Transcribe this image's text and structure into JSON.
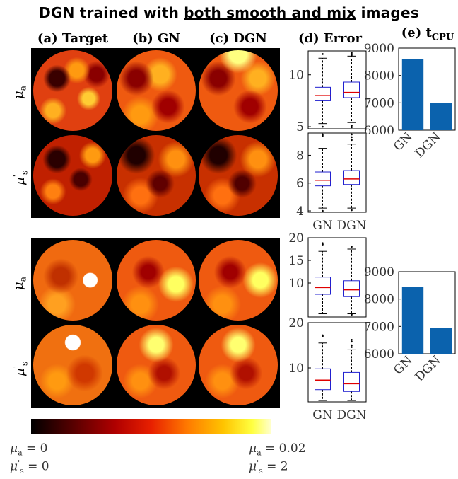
{
  "title": {
    "pre": "DGN trained with ",
    "underlined": "both smooth and mix",
    "post": " images"
  },
  "columns": {
    "target": "(a) Target",
    "gn": "(b) GN",
    "dgn": "(c) DGN",
    "error": "(d) Error",
    "tcpu": "(e) t",
    "tcpu_sub": "CPU"
  },
  "row_labels": {
    "mua_sym": "μ",
    "mua_sub": "a",
    "mus_sym": "μ",
    "mus_sup": "'",
    "mus_sub": "s"
  },
  "colorbar": {
    "min_mua": "μ",
    "min_mua_sub": "a",
    "min_mua_val": " = 0",
    "min_mus": "μ",
    "min_mus_sup": "'",
    "min_mus_sub": "s",
    "min_mus_val": " = 0",
    "max_mua": "μ",
    "max_mua_sub": "a",
    "max_mua_val": " = 0.02",
    "max_mus": "μ",
    "max_mus_sup": "'",
    "max_mus_sub": "s",
    "max_mus_val": " = 2",
    "colors": [
      "#000000",
      "#5a0000",
      "#b00000",
      "#e82000",
      "#ff7a00",
      "#ffc400",
      "#ffff40",
      "#ffffd0"
    ]
  },
  "chart_data": [
    {
      "type": "box",
      "panel": "smooth-mua-error",
      "categories": [
        "GN",
        "DGN"
      ],
      "ylim": [
        4.8,
        12.3
      ],
      "yticks": [
        5,
        10
      ],
      "show_xlabels": false,
      "series": [
        {
          "name": "GN",
          "q1": 7.5,
          "median": 8.0,
          "q3": 8.8,
          "whisker_low": 5.3,
          "whisker_high": 11.6,
          "outliers": [
            12.0,
            5.0
          ]
        },
        {
          "name": "DGN",
          "q1": 7.8,
          "median": 8.3,
          "q3": 9.3,
          "whisker_low": 5.4,
          "whisker_high": 11.8,
          "outliers": [
            12.1,
            11.9,
            5.1,
            4.95
          ]
        }
      ]
    },
    {
      "type": "box",
      "panel": "smooth-mus-error",
      "categories": [
        "GN",
        "DGN"
      ],
      "ylim": [
        3.9,
        9.6
      ],
      "yticks": [
        4,
        6,
        8
      ],
      "show_xlabels": true,
      "series": [
        {
          "name": "GN",
          "q1": 5.8,
          "median": 6.2,
          "q3": 6.8,
          "whisker_low": 4.2,
          "whisker_high": 8.5,
          "outliers": [
            9.5,
            9.4,
            4.0
          ]
        },
        {
          "name": "DGN",
          "q1": 5.9,
          "median": 6.3,
          "q3": 6.9,
          "whisker_low": 4.2,
          "whisker_high": 8.8,
          "outliers": [
            9.5,
            9.3,
            9.1,
            4.05
          ]
        }
      ]
    },
    {
      "type": "box",
      "panel": "mix-mua-error",
      "categories": [
        "GN",
        "DGN"
      ],
      "ylim": [
        2.5,
        20
      ],
      "yticks": [
        10,
        15,
        20
      ],
      "show_xlabels": false,
      "series": [
        {
          "name": "GN",
          "q1": 7.5,
          "median": 9.0,
          "q3": 11.3,
          "whisker_low": 3.2,
          "whisker_high": 17.0,
          "outliers": [
            18.8,
            18.5
          ]
        },
        {
          "name": "DGN",
          "q1": 7.0,
          "median": 8.5,
          "q3": 10.5,
          "whisker_low": 3.2,
          "whisker_high": 17.5,
          "outliers": [
            18.0,
            3.0
          ]
        }
      ]
    },
    {
      "type": "box",
      "panel": "mix-mus-error",
      "categories": [
        "GN",
        "DGN"
      ],
      "ylim": [
        2.5,
        20
      ],
      "yticks": [
        10,
        20
      ],
      "show_xlabels": true,
      "series": [
        {
          "name": "GN",
          "q1": 5.2,
          "median": 7.3,
          "q3": 9.8,
          "whisker_low": 2.8,
          "whisker_high": 15.5,
          "outliers": [
            17.2,
            17.0
          ]
        },
        {
          "name": "DGN",
          "q1": 4.8,
          "median": 6.5,
          "q3": 9.0,
          "whisker_low": 2.8,
          "whisker_high": 14.0,
          "outliers": [
            16.2,
            15.8,
            15.0,
            14.6
          ]
        }
      ]
    },
    {
      "type": "bar",
      "panel": "smooth-tcpu",
      "categories": [
        "GN",
        "DGN"
      ],
      "values": [
        8600,
        7000
      ],
      "ylim": [
        6000,
        9000
      ],
      "yticks": [
        6000,
        7000,
        8000,
        9000
      ],
      "color": "#0b62ad"
    },
    {
      "type": "bar",
      "panel": "mix-tcpu",
      "categories": [
        "GN",
        "DGN"
      ],
      "values": [
        8450,
        6950
      ],
      "ylim": [
        6000,
        9000
      ],
      "yticks": [
        6000,
        7000,
        8000,
        9000
      ],
      "color": "#0b62ad"
    }
  ]
}
